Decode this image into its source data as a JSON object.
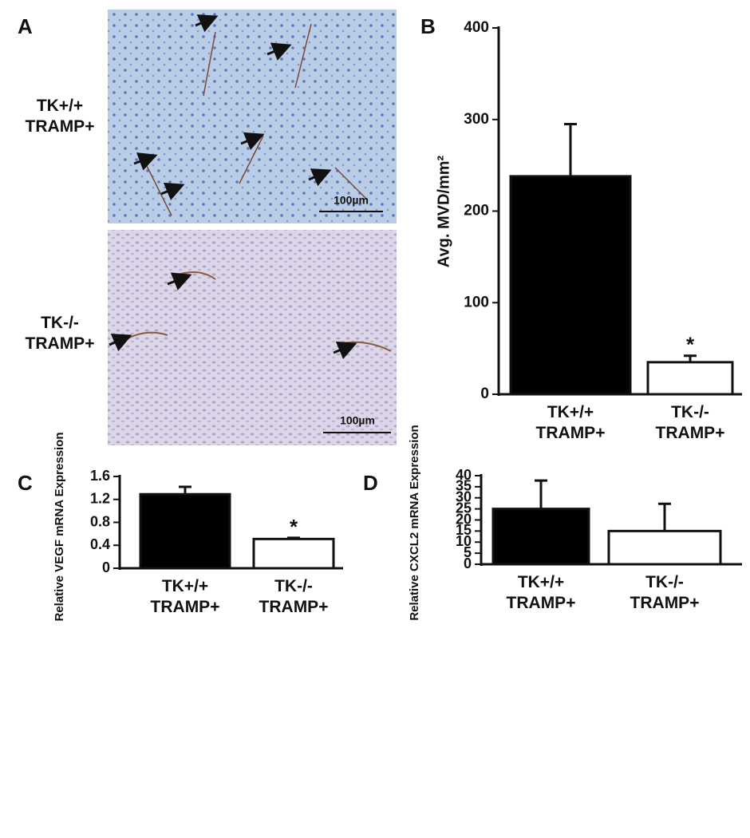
{
  "panel_a": {
    "label": "A",
    "row_labels": [
      "TK+/+ TRAMP+",
      "TK-/- TRAMP+"
    ],
    "scale_bars": [
      "100µm",
      "100µm"
    ]
  },
  "chart_data": [
    {
      "type": "bar",
      "panel": "B",
      "y_label": "Avg. MVD/mm²",
      "categories": [
        "TK+/+ TRAMP+",
        "TK-/- TRAMP+"
      ],
      "values": [
        238,
        35
      ],
      "errors": [
        57,
        7
      ],
      "colors": [
        "#000000",
        "#ffffff"
      ],
      "annotation": "*",
      "ylim": [
        0,
        400
      ],
      "yticks": [
        0,
        100,
        200,
        300,
        400
      ]
    },
    {
      "type": "bar",
      "panel": "C",
      "y_label": "Relative VEGF mRNA Expression",
      "categories": [
        "TK+/+ TRAMP+",
        "TK-/- TRAMP+"
      ],
      "values": [
        1.29,
        0.51
      ],
      "errors": [
        0.13,
        0.02
      ],
      "colors": [
        "#000000",
        "#ffffff"
      ],
      "annotation": "*",
      "ylim": [
        0,
        1.6
      ],
      "yticks": [
        0,
        0.4,
        0.8,
        1.2,
        1.6
      ]
    },
    {
      "type": "bar",
      "panel": "D",
      "y_label": "Relative CXCL2 mRNA Expression",
      "categories": [
        "TK+/+ TRAMP+",
        "TK-/- TRAMP+"
      ],
      "values": [
        25,
        15
      ],
      "errors": [
        12.8,
        12.3
      ],
      "colors": [
        "#000000",
        "#ffffff"
      ],
      "ylim": [
        0,
        40
      ],
      "yticks": [
        0,
        5,
        10,
        15,
        20,
        25,
        30,
        35,
        40
      ]
    }
  ]
}
